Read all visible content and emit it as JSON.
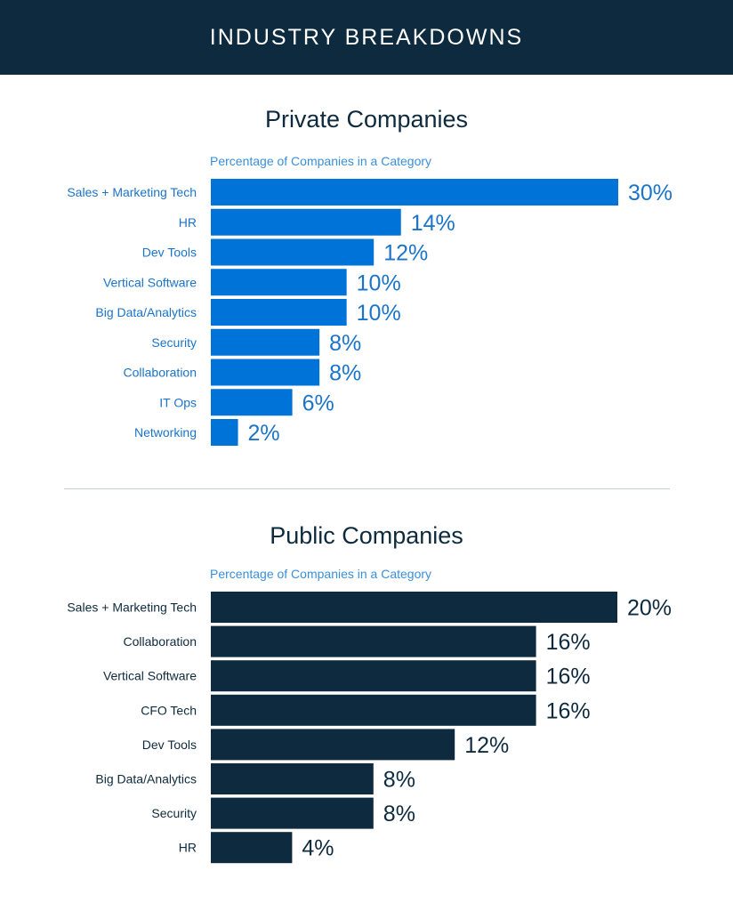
{
  "header": {
    "title": "INDUSTRY BREAKDOWNS"
  },
  "colors": {
    "header_bg": "#0d2a3e",
    "private_bar": "#0073d8",
    "public_bar": "#0d2a3e",
    "divider": "#c7ced4"
  },
  "chart_data": [
    {
      "type": "bar",
      "orientation": "horizontal",
      "title": "Private Companies",
      "subtitle": "Percentage of Companies in a Category",
      "categories": [
        "Sales + Marketing Tech",
        "HR",
        "Dev Tools",
        "Vertical Software",
        "Big Data/Analytics",
        "Security",
        "Collaboration",
        "IT Ops",
        "Networking"
      ],
      "values": [
        30,
        14,
        12,
        10,
        10,
        8,
        8,
        6,
        2
      ],
      "value_labels": [
        "30%",
        "14%",
        "12%",
        "10%",
        "10%",
        "8%",
        "8%",
        "6%",
        "2%"
      ],
      "unit": "%",
      "xlim": [
        0,
        30
      ],
      "color": "#0073d8",
      "grid": false
    },
    {
      "type": "bar",
      "orientation": "horizontal",
      "title": "Public Companies",
      "subtitle": "Percentage of Companies in a Category",
      "categories": [
        "Sales + Marketing Tech",
        "Collaboration",
        "Vertical Software",
        "CFO Tech",
        "Dev Tools",
        "Big Data/Analytics",
        "Security",
        "HR"
      ],
      "values": [
        20,
        16,
        16,
        16,
        12,
        8,
        8,
        4
      ],
      "value_labels": [
        "20%",
        "16%",
        "16%",
        "16%",
        "12%",
        "8%",
        "8%",
        "4%"
      ],
      "unit": "%",
      "xlim": [
        0,
        20
      ],
      "color": "#0d2a3e",
      "grid": false
    }
  ]
}
